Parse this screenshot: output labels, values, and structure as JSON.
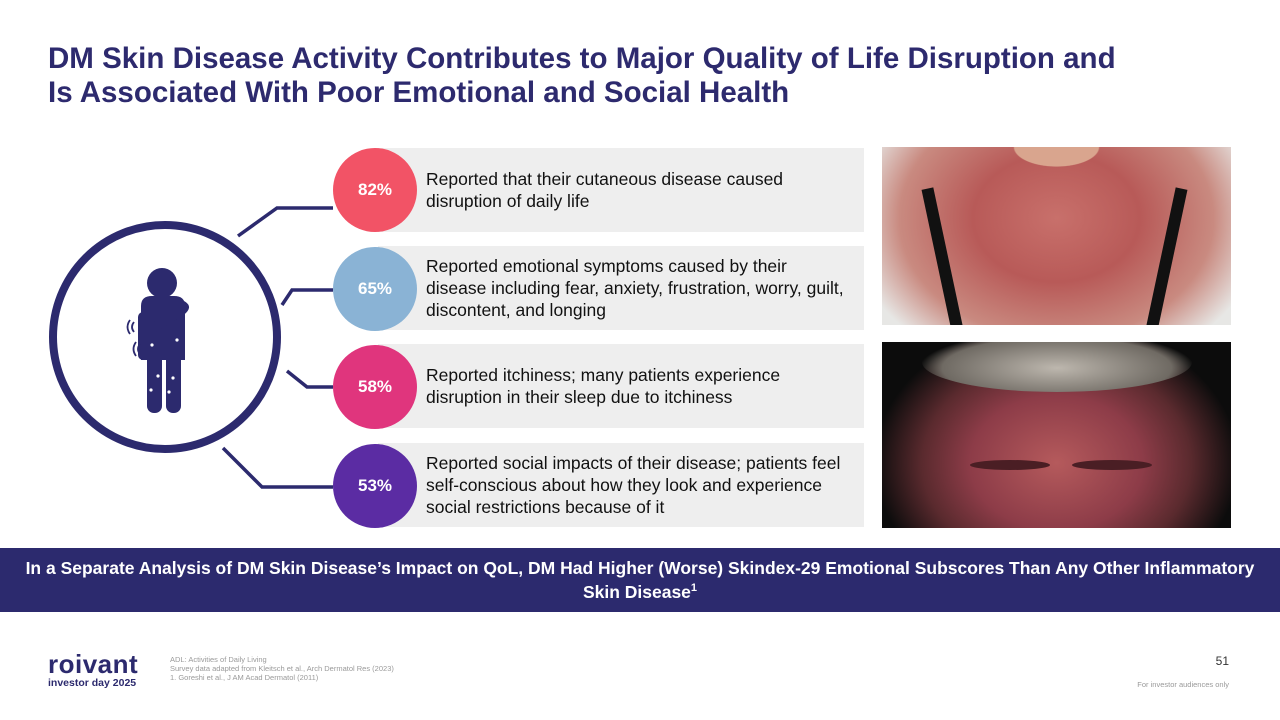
{
  "title": {
    "line1": "DM Skin Disease Activity Contributes to Major Quality of Life Disruption and",
    "line2": "Is Associated With Poor Emotional and Social Health"
  },
  "stats": [
    {
      "percent": "82%",
      "color": "#f25366",
      "text": "Reported that their cutaneous disease caused disruption of daily life"
    },
    {
      "percent": "65%",
      "color": "#8ab3d5",
      "text": "Reported emotional symptoms caused by their disease including fear, anxiety, frustration, worry, guilt, discontent, and longing"
    },
    {
      "percent": "58%",
      "color": "#e0357d",
      "text": "Reported itchiness; many patients experience disruption in their sleep due to itchiness"
    },
    {
      "percent": "53%",
      "color": "#5b2ca3",
      "text": "Reported social impacts of their disease; patients feel self-conscious about how they look and experience social restrictions because of it"
    }
  ],
  "icons": {
    "figure": "person-scratching-icon",
    "photo_top": "neck-chest-rash-photo",
    "photo_bottom": "face-rash-photo"
  },
  "banner": {
    "text": "In a Separate Analysis of DM Skin Disease’s Impact on QoL, DM Had Higher (Worse) Skindex-29 Emotional Subscores Than Any Other Inflammatory Skin Disease",
    "superscript": "1"
  },
  "logo": {
    "name": "roivant",
    "subtitle": "investor day 2025"
  },
  "footnotes": [
    "ADL: Activities of Daily Living",
    "Survey data adapted from Kleitsch et al., Arch Dermatol Res (2023)",
    "1. Goreshi et al., J AM Acad Dermatol (2011)"
  ],
  "page_number": "51",
  "disclaimer": "For investor audiences only",
  "colors": {
    "navy": "#2c2a6e",
    "row_bg": "#eeeeee"
  }
}
